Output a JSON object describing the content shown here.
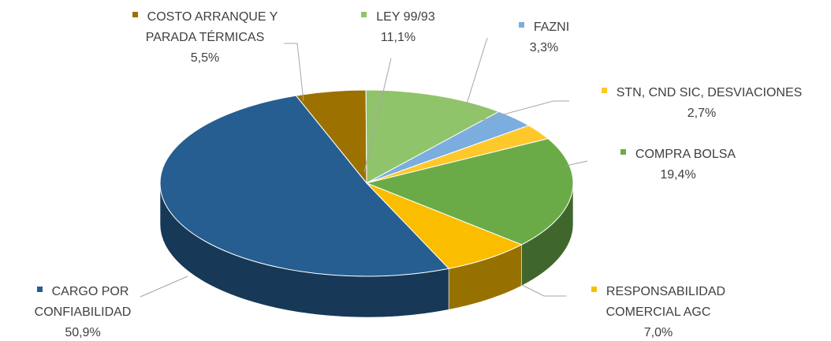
{
  "chart_data": {
    "type": "pie",
    "categories": [
      "COSTO ARRANQUE Y PARADA TÉRMICAS",
      "LEY 99/93",
      "FAZNI",
      "STN, CND SIC, DESVIACIONES",
      "COMPRA BOLSA",
      "RESPONSABILIDAD COMERCIAL AGC",
      "CARGO POR CONFIABILIDAD"
    ],
    "values": [
      5.5,
      11.1,
      3.3,
      2.7,
      19.4,
      7.0,
      50.9
    ],
    "value_labels": [
      "5,5%",
      "11,1%",
      "3,3%",
      "2,7%",
      "19,4%",
      "7,0%",
      "50,9%"
    ],
    "colors": [
      "#9c7100",
      "#90c46b",
      "#7badde",
      "#ffc82a",
      "#6bab47",
      "#fbbd00",
      "#265e91"
    ]
  }
}
